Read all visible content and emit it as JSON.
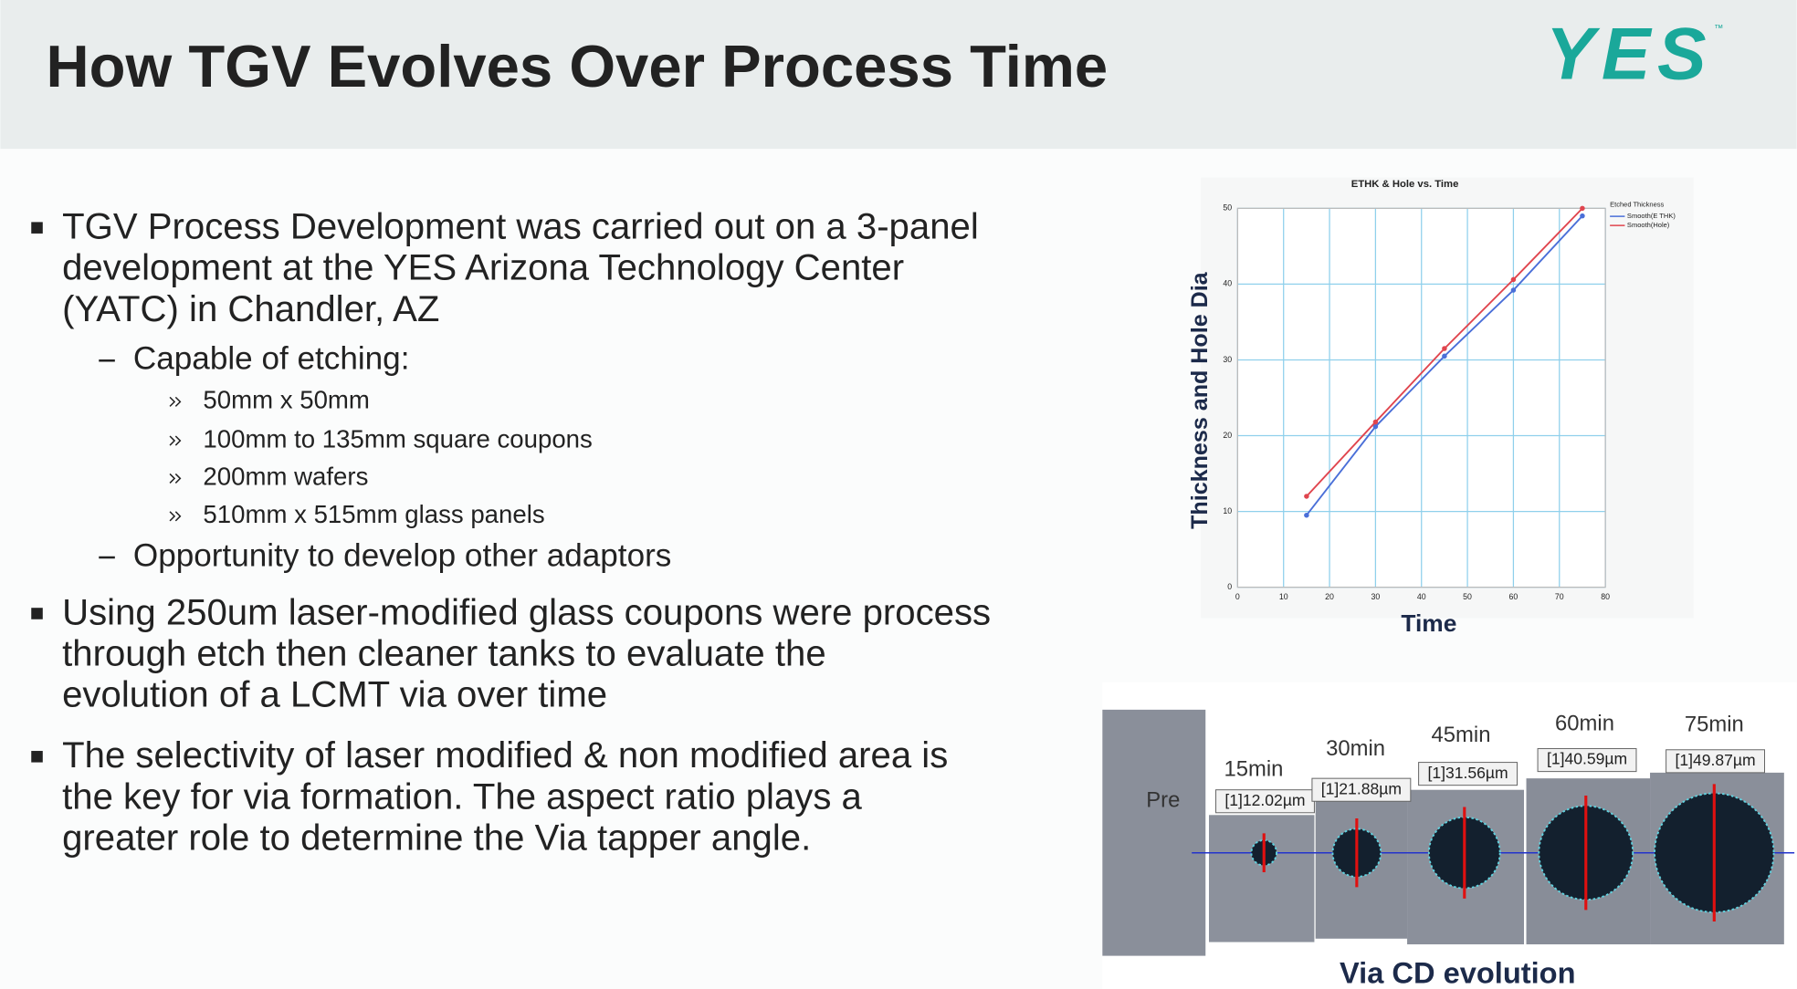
{
  "header": {
    "title": "How TGV Evolves Over Process Time",
    "logo": "YES",
    "logo_mark": "™"
  },
  "bullets": [
    {
      "lines": [
        "TGV Process Development was carried out on a 3-panel",
        "development at the YES Arizona Technology Center",
        "(YATC) in Chandler, AZ"
      ],
      "sub": [
        {
          "text": "Capable of etching:",
          "items": [
            "50mm x 50mm",
            "100mm to 135mm square coupons",
            "200mm wafers",
            "510mm x 515mm glass panels"
          ]
        },
        {
          "text": "Opportunity to develop other adaptors"
        }
      ]
    },
    {
      "lines": [
        "Using 250um laser-modified glass coupons were process",
        "through etch then cleaner tanks to evaluate the",
        "evolution of a LCMT via over time"
      ]
    },
    {
      "lines": [
        "The selectivity of laser modified & non modified area is",
        "the key for via formation. The aspect ratio plays a",
        "greater role to determine the Via tapper angle."
      ]
    }
  ],
  "chart_data": {
    "type": "line",
    "title": "ETHK & Hole vs. Time",
    "x_label": "Time",
    "y_label": "Thickness and Hole Dia",
    "legend_title": "Etched Thickness",
    "x": [
      15,
      30,
      45,
      60,
      75
    ],
    "series": [
      {
        "name": "Smooth(E THK)",
        "color": "#4a6fd8",
        "values": [
          9.5,
          21.2,
          30.5,
          39.2,
          49
        ]
      },
      {
        "name": "Smooth(Hole)",
        "color": "#e0454e",
        "values": [
          12,
          21.8,
          31.5,
          40.6,
          50
        ]
      }
    ],
    "xlim": [
      0,
      80
    ],
    "xticks": [
      0,
      10,
      20,
      30,
      40,
      50,
      60,
      70,
      80
    ],
    "ylim": [
      0,
      50
    ],
    "yticks": [
      0,
      10,
      20,
      30,
      40,
      50
    ],
    "grid": true
  },
  "via": {
    "title": "Via CD evolution",
    "stages": [
      {
        "label": "Pre"
      },
      {
        "label": "15min",
        "measurement": "[1]12.02µm"
      },
      {
        "label": "30min",
        "measurement": "[1]21.88µm"
      },
      {
        "label": "45min",
        "measurement": "[1]31.56µm"
      },
      {
        "label": "60min",
        "measurement": "[1]40.59µm"
      },
      {
        "label": "75min",
        "measurement": "[1]49.87µm"
      }
    ]
  }
}
